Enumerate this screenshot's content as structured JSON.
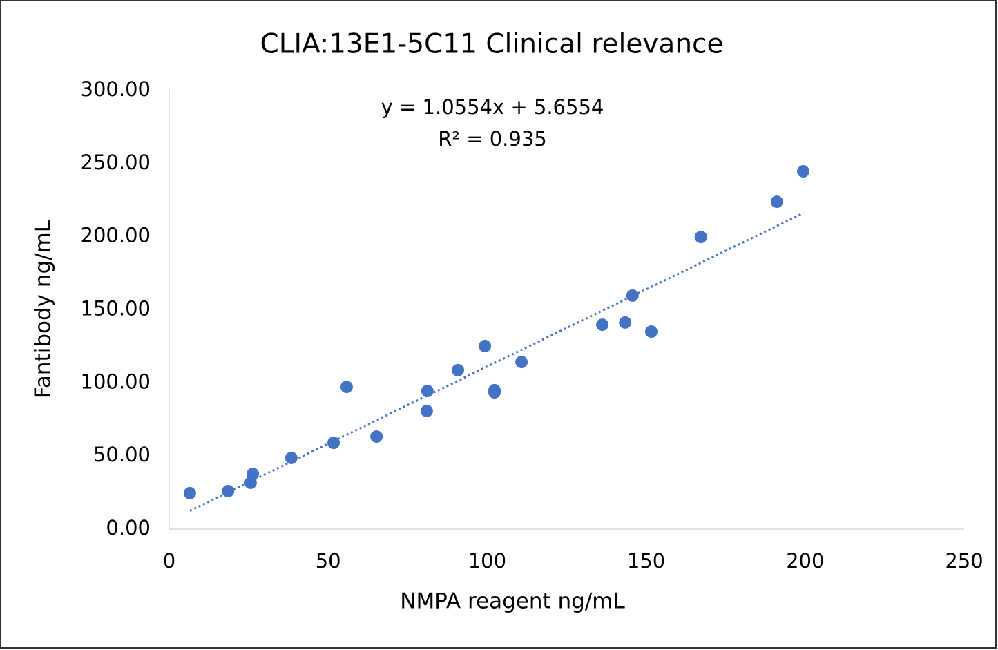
{
  "chart_data": {
    "type": "scatter",
    "title": "CLIA:13E1-5C11 Clinical relevance",
    "x_label": "NMPA reagent ng/mL",
    "y_label": "Fantibody ng/mL",
    "color": "#4472c4",
    "x": [
      6.5,
      18.5,
      25.6,
      26.3,
      38.4,
      51.7,
      55.8,
      65.2,
      81,
      81.2,
      90.8,
      99.3,
      102.3,
      102.3,
      110.8,
      136.2,
      143.4,
      145.7,
      151.6,
      167.2,
      191.1,
      199.4
    ],
    "values": [
      24.6,
      26,
      31.7,
      37.8,
      48.7,
      59,
      97.3,
      63.3,
      80.8,
      94.5,
      108.7,
      125.2,
      95,
      93.5,
      114.3,
      139.8,
      141.3,
      159.7,
      135.1,
      199.8,
      223.9,
      244.7
    ],
    "xlim": [
      0,
      250
    ],
    "xticks": [
      0,
      50,
      100,
      150,
      200,
      250
    ],
    "ylim": [
      0,
      300
    ],
    "yticks": [
      {
        "value": 0,
        "label": "0.00"
      },
      {
        "value": 50,
        "label": "50.00"
      },
      {
        "value": 100,
        "label": "100.00"
      },
      {
        "value": 150,
        "label": "150.00"
      },
      {
        "value": 200,
        "label": "200.00"
      },
      {
        "value": 250,
        "label": "250.00"
      },
      {
        "value": 300,
        "label": "300.00"
      }
    ],
    "grid": false,
    "trendline": {
      "slope": 1.0554,
      "intercept": 5.6554,
      "equation": "y = 1.0554x + 5.6554",
      "r_squared": "R² = 0.935"
    }
  }
}
